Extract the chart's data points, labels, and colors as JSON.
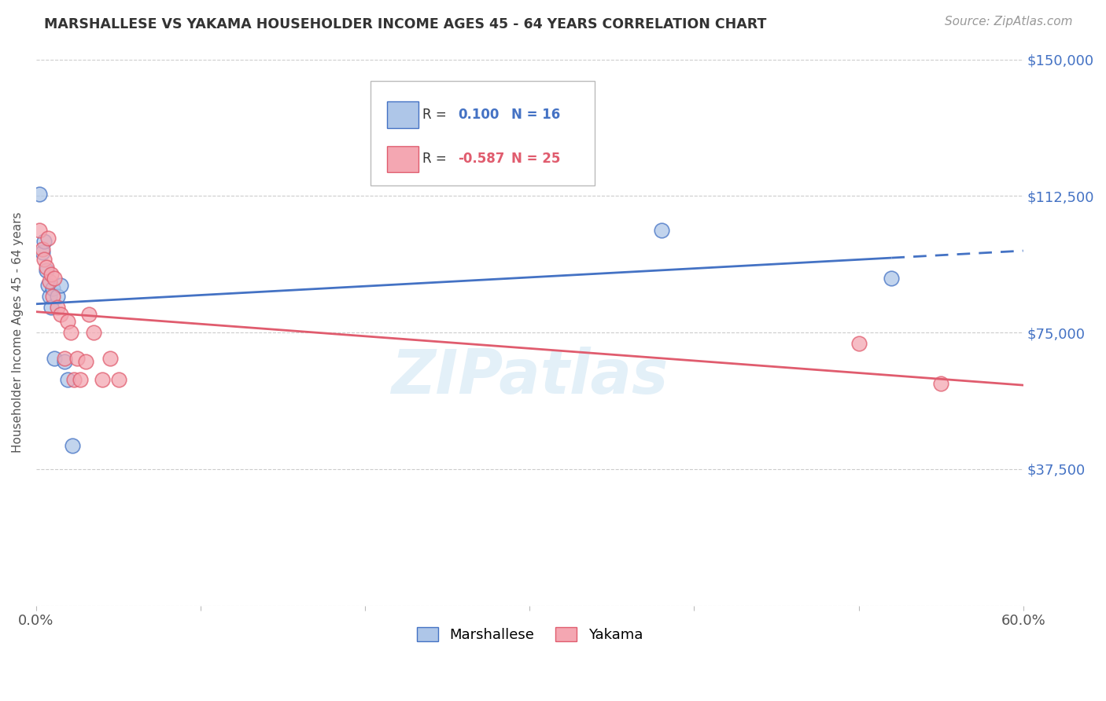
{
  "title": "MARSHALLESE VS YAKAMA HOUSEHOLDER INCOME AGES 45 - 64 YEARS CORRELATION CHART",
  "source": "Source: ZipAtlas.com",
  "ylabel": "Householder Income Ages 45 - 64 years",
  "xlim": [
    0.0,
    0.6
  ],
  "ylim": [
    0,
    150000
  ],
  "yticks": [
    0,
    37500,
    75000,
    112500,
    150000
  ],
  "ytick_labels": [
    "",
    "$37,500",
    "$75,000",
    "$112,500",
    "$150,000"
  ],
  "background_color": "#ffffff",
  "grid_color": "#cccccc",
  "marshallese_color": "#aec6e8",
  "yakama_color": "#f4a7b2",
  "blue_line_color": "#4472C4",
  "pink_line_color": "#E05C6E",
  "marshallese_R": 0.1,
  "marshallese_N": 16,
  "yakama_R": -0.587,
  "yakama_N": 25,
  "watermark": "ZIPatlas",
  "marshallese_x": [
    0.002,
    0.004,
    0.005,
    0.006,
    0.007,
    0.008,
    0.009,
    0.01,
    0.011,
    0.013,
    0.015,
    0.017,
    0.019,
    0.022,
    0.38,
    0.52
  ],
  "marshallese_y": [
    113000,
    97000,
    100000,
    92000,
    88000,
    85000,
    82000,
    87000,
    68000,
    85000,
    88000,
    67000,
    62000,
    44000,
    103000,
    90000
  ],
  "yakama_x": [
    0.002,
    0.004,
    0.005,
    0.006,
    0.007,
    0.008,
    0.009,
    0.01,
    0.011,
    0.013,
    0.015,
    0.017,
    0.019,
    0.021,
    0.023,
    0.025,
    0.027,
    0.03,
    0.032,
    0.035,
    0.04,
    0.045,
    0.05,
    0.5,
    0.55
  ],
  "yakama_y": [
    103000,
    98000,
    95000,
    93000,
    101000,
    89000,
    91000,
    85000,
    90000,
    82000,
    80000,
    68000,
    78000,
    75000,
    62000,
    68000,
    62000,
    67000,
    80000,
    75000,
    62000,
    68000,
    62000,
    72000,
    61000
  ]
}
